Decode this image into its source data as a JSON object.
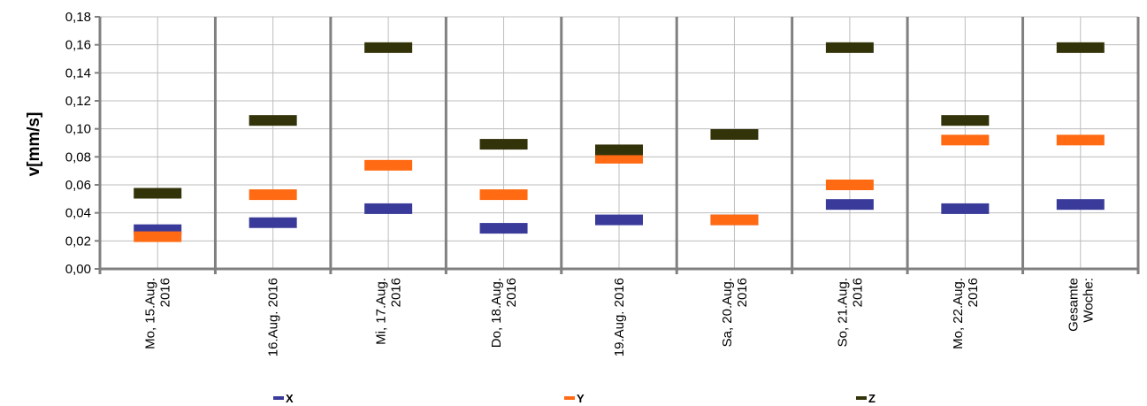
{
  "chart_data": {
    "type": "scatter",
    "title": "",
    "xlabel": "",
    "ylabel": "v[mm/s]",
    "ylim": [
      0,
      0.18
    ],
    "ytick_step": 0.02,
    "ytick_labels": [
      "0,00",
      "0,02",
      "0,04",
      "0,06",
      "0,08",
      "0,10",
      "0,12",
      "0,14",
      "0,16",
      "0,18"
    ],
    "grid": true,
    "legend_position": "bottom",
    "categories": [
      [
        "Mo, 15.Aug.",
        "2016"
      ],
      [
        "16.Aug. 2016"
      ],
      [
        "Mi, 17.Aug.",
        "2016"
      ],
      [
        "Do, 18.Aug.",
        "2016"
      ],
      [
        "19.Aug. 2016"
      ],
      [
        "Sa, 20.Aug.",
        "2016"
      ],
      [
        "So, 21.Aug.",
        "2016"
      ],
      [
        "Mo, 22.Aug.",
        "2016"
      ],
      [
        "Gesamte",
        "Woche:"
      ]
    ],
    "series": [
      {
        "name": "X",
        "color": "#3a3a9a",
        "values": [
          0.028,
          0.033,
          0.043,
          0.029,
          0.035,
          0.035,
          0.046,
          0.043,
          0.046
        ]
      },
      {
        "name": "Y",
        "color": "#ff6a13",
        "values": [
          0.023,
          0.053,
          0.074,
          0.053,
          0.079,
          0.035,
          0.06,
          0.092,
          0.092
        ]
      },
      {
        "name": "Z",
        "color": "#33330a",
        "values": [
          0.054,
          0.106,
          0.158,
          0.089,
          0.085,
          0.096,
          0.158,
          0.106,
          0.158
        ]
      }
    ]
  }
}
